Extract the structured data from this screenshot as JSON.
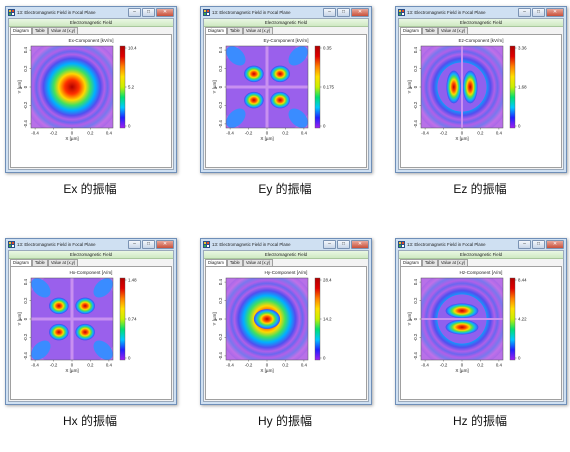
{
  "colors": {
    "jet": [
      "#a020f0",
      "#2020ff",
      "#00c8ff",
      "#00e070",
      "#c8f000",
      "#ffe000",
      "#ff8000",
      "#e00000",
      "#b00000"
    ]
  },
  "windows": [
    {
      "title": "13: Electromagnetic Field in Focal Plane",
      "header": "Electromagnetic Field",
      "tabs": [
        "Diagram",
        "Table",
        "Value at (x,y)"
      ],
      "plot_title": "Ex-Component  [kV/m]",
      "colorbar_ticks": [
        "10.4",
        "5.2",
        "0"
      ],
      "x_ticks": [
        "-0.4",
        "-0.2",
        "0",
        "0.2",
        "0.4"
      ],
      "y_ticks": [
        "0.4",
        "0.2",
        "0",
        "-0.2",
        "-0.4"
      ],
      "xlabel": "X [µm]",
      "ylabel": "Y [µm]",
      "pattern": "ex",
      "caption": "Ex 的振幅"
    },
    {
      "title": "13: Electromagnetic Field in Focal Plane",
      "header": "Electromagnetic Field",
      "tabs": [
        "Diagram",
        "Table",
        "Value at (x,y)"
      ],
      "plot_title": "Ey-Component  [kV/m]",
      "colorbar_ticks": [
        "0.35",
        "0.175",
        "0"
      ],
      "x_ticks": [
        "-0.4",
        "-0.2",
        "0",
        "0.2",
        "0.4"
      ],
      "y_ticks": [
        "0.4",
        "0.2",
        "0",
        "-0.2",
        "-0.4"
      ],
      "xlabel": "X [µm]",
      "ylabel": "Y [µm]",
      "pattern": "quad",
      "caption": "Ey 的振幅"
    },
    {
      "title": "13: Electromagnetic Field in Focal Plane",
      "header": "Electromagnetic Field",
      "tabs": [
        "Diagram",
        "Table",
        "Value at (x,y)"
      ],
      "plot_title": "Ez-Component  [kV/m]",
      "colorbar_ticks": [
        "3.36",
        "1.68",
        "0"
      ],
      "x_ticks": [
        "-0.4",
        "-0.2",
        "0",
        "0.2",
        "0.4"
      ],
      "y_ticks": [
        "0.4",
        "0.2",
        "0",
        "-0.2",
        "-0.4"
      ],
      "xlabel": "X [µm]",
      "ylabel": "Y [µm]",
      "pattern": "lobesx",
      "caption": "Ez 的振幅"
    },
    {
      "title": "13: Electromagnetic Field in Focal Plane",
      "header": "Electromagnetic Field",
      "tabs": [
        "Diagram",
        "Table",
        "Value at (x,y)"
      ],
      "plot_title": "Hx-Component  [A/m]",
      "colorbar_ticks": [
        "1.48",
        "0.74",
        "0"
      ],
      "x_ticks": [
        "-0.4",
        "-0.2",
        "0",
        "0.2",
        "0.4"
      ],
      "y_ticks": [
        "0.4",
        "0.2",
        "0",
        "-0.2",
        "-0.4"
      ],
      "xlabel": "X [µm]",
      "ylabel": "Y [µm]",
      "pattern": "quad",
      "caption": "Hx 的振幅"
    },
    {
      "title": "13: Electromagnetic Field in Focal Plane",
      "header": "Electromagnetic Field",
      "tabs": [
        "Diagram",
        "Table",
        "Value at (x,y)"
      ],
      "plot_title": "Hy-Component  [A/m]",
      "colorbar_ticks": [
        "28.4",
        "14.2",
        "0"
      ],
      "x_ticks": [
        "-0.4",
        "-0.2",
        "0",
        "0.2",
        "0.4"
      ],
      "y_ticks": [
        "0.4",
        "0.2",
        "0",
        "-0.2",
        "-0.4"
      ],
      "xlabel": "X [µm]",
      "ylabel": "Y [µm]",
      "pattern": "center",
      "caption": "Hy 的振幅"
    },
    {
      "title": "13: Electromagnetic Field in Focal Plane",
      "header": "Electromagnetic Field",
      "tabs": [
        "Diagram",
        "Table",
        "Value at (x,y)"
      ],
      "plot_title": "Hz-Component  [A/m]",
      "colorbar_ticks": [
        "8.44",
        "4.22",
        "0"
      ],
      "x_ticks": [
        "-0.4",
        "-0.2",
        "0",
        "0.2",
        "0.4"
      ],
      "y_ticks": [
        "0.4",
        "0.2",
        "0",
        "-0.2",
        "-0.4"
      ],
      "xlabel": "X [µm]",
      "ylabel": "Y [µm]",
      "pattern": "lobesy",
      "caption": "Hz 的振幅"
    }
  ]
}
